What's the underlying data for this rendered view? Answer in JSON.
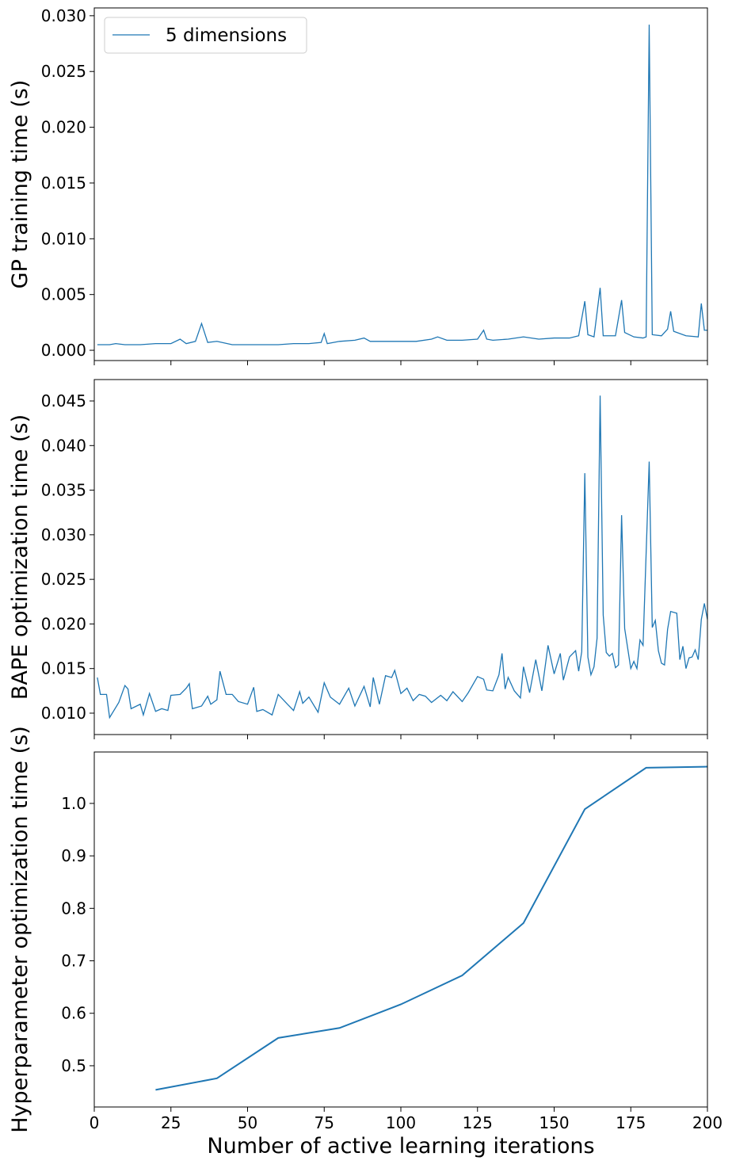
{
  "chart_data": [
    {
      "type": "line",
      "ylabel": "GP training time (s)",
      "legend": "upper left",
      "xlim": [
        0,
        200
      ],
      "xticks": [
        0,
        25,
        50,
        75,
        100,
        125,
        150,
        175,
        200
      ],
      "ylim": [
        -0.00092,
        0.0307
      ],
      "yticks": [
        {
          "value": 0,
          "label": "0.000"
        },
        {
          "value": 0.005,
          "label": "0.005"
        },
        {
          "value": 0.01,
          "label": "0.010"
        },
        {
          "value": 0.015,
          "label": "0.015"
        },
        {
          "value": 0.02,
          "label": "0.020"
        },
        {
          "value": 0.025,
          "label": "0.025"
        },
        {
          "value": 0.03,
          "label": "0.030"
        }
      ],
      "x": [
        1,
        5,
        7,
        10,
        15,
        20,
        25,
        28,
        30,
        33,
        35,
        37,
        40,
        45,
        50,
        55,
        60,
        65,
        70,
        74,
        75,
        76,
        80,
        85,
        88,
        90,
        95,
        100,
        105,
        110,
        112,
        115,
        120,
        125,
        127,
        128,
        130,
        135,
        140,
        145,
        150,
        155,
        158,
        160,
        161,
        163,
        165,
        166,
        170,
        172,
        173,
        176,
        179,
        180,
        181,
        182,
        185,
        187,
        188,
        189,
        193,
        197,
        198,
        199,
        200
      ],
      "series": [
        {
          "name": "5 dimensions",
          "color": "#1f77b4",
          "values": [
            0.0005,
            0.0005,
            0.0006,
            0.0005,
            0.0005,
            0.0006,
            0.0006,
            0.001,
            0.0006,
            0.0008,
            0.0024,
            0.0007,
            0.0008,
            0.0005,
            0.0005,
            0.0005,
            0.0005,
            0.0006,
            0.0006,
            0.0007,
            0.0015,
            0.0006,
            0.0008,
            0.0009,
            0.0011,
            0.0008,
            0.0008,
            0.0008,
            0.0008,
            0.001,
            0.0012,
            0.0009,
            0.0009,
            0.001,
            0.0018,
            0.001,
            0.0009,
            0.001,
            0.0012,
            0.001,
            0.0011,
            0.0011,
            0.0013,
            0.0044,
            0.0014,
            0.0012,
            0.0056,
            0.0013,
            0.0013,
            0.0045,
            0.0016,
            0.0012,
            0.0011,
            0.0012,
            0.0292,
            0.0014,
            0.0013,
            0.0019,
            0.0035,
            0.0017,
            0.0013,
            0.0012,
            0.0042,
            0.0018,
            0.0018
          ]
        }
      ]
    },
    {
      "type": "line",
      "ylabel": "BAPE optimization time (s)",
      "xlim": [
        0,
        200
      ],
      "xticks": [
        0,
        25,
        50,
        75,
        100,
        125,
        150,
        175,
        200
      ],
      "ylim": [
        0.0076,
        0.0474
      ],
      "yticks": [
        {
          "value": 0.01,
          "label": "0.010"
        },
        0.015,
        {
          "value": 0.02,
          "label": "0.020"
        },
        0.025,
        {
          "value": 0.03,
          "label": "0.030"
        },
        0.035,
        {
          "value": 0.04,
          "label": "0.040"
        },
        0.045
      ],
      "x": [
        1,
        2,
        4,
        5,
        8,
        10,
        11,
        12,
        15,
        16,
        18,
        20,
        22,
        24,
        25,
        28,
        30,
        31,
        32,
        35,
        37,
        38,
        40,
        41,
        43,
        45,
        47,
        50,
        52,
        53,
        55,
        58,
        60,
        63,
        65,
        67,
        68,
        70,
        73,
        75,
        77,
        80,
        83,
        85,
        88,
        90,
        91,
        93,
        95,
        97,
        98,
        100,
        102,
        104,
        106,
        108,
        110,
        113,
        115,
        117,
        120,
        122,
        125,
        127,
        128,
        130,
        132,
        133,
        134,
        135,
        137,
        139,
        140,
        142,
        144,
        146,
        148,
        150,
        152,
        153,
        155,
        157,
        158,
        159,
        160,
        161,
        162,
        163,
        164,
        165,
        166,
        167,
        168,
        169,
        170,
        171,
        172,
        173,
        175,
        176,
        177,
        178,
        179,
        181,
        182,
        183,
        184,
        185,
        186,
        187,
        188,
        190,
        191,
        192,
        193,
        194,
        195,
        196,
        197,
        198,
        199,
        200
      ],
      "series": [
        {
          "name": null,
          "color": "#1f77b4",
          "values": [
            0.014,
            0.0121,
            0.0121,
            0.0095,
            0.0112,
            0.0131,
            0.0127,
            0.0105,
            0.011,
            0.0098,
            0.0122,
            0.0102,
            0.0105,
            0.0103,
            0.012,
            0.0121,
            0.0128,
            0.0133,
            0.0105,
            0.0108,
            0.0119,
            0.011,
            0.0115,
            0.0147,
            0.0121,
            0.0121,
            0.0113,
            0.011,
            0.0129,
            0.0102,
            0.0104,
            0.0098,
            0.0121,
            0.011,
            0.0103,
            0.0124,
            0.0111,
            0.0118,
            0.0101,
            0.0134,
            0.0118,
            0.011,
            0.0128,
            0.0108,
            0.013,
            0.0107,
            0.014,
            0.011,
            0.0142,
            0.014,
            0.0148,
            0.0122,
            0.0128,
            0.0114,
            0.0121,
            0.0119,
            0.0112,
            0.012,
            0.0114,
            0.0124,
            0.0113,
            0.0123,
            0.0141,
            0.0138,
            0.0126,
            0.0125,
            0.0143,
            0.0167,
            0.0127,
            0.014,
            0.0125,
            0.0117,
            0.0152,
            0.0123,
            0.016,
            0.0125,
            0.0176,
            0.0144,
            0.0167,
            0.0137,
            0.0163,
            0.017,
            0.0147,
            0.0169,
            0.0369,
            0.0163,
            0.0143,
            0.0152,
            0.0184,
            0.0456,
            0.021,
            0.0168,
            0.0164,
            0.0167,
            0.0151,
            0.0154,
            0.0322,
            0.0195,
            0.015,
            0.0158,
            0.015,
            0.0182,
            0.0176,
            0.0382,
            0.0196,
            0.0204,
            0.017,
            0.0156,
            0.0154,
            0.0194,
            0.0214,
            0.0212,
            0.016,
            0.0175,
            0.015,
            0.0162,
            0.0163,
            0.0171,
            0.016,
            0.0205,
            0.0223,
            0.0205
          ]
        }
      ]
    },
    {
      "type": "line",
      "ylabel": "Hyperparameter optimization time (s)",
      "xlabel": "Number of active learning iterations",
      "xlim": [
        0,
        200
      ],
      "xticks": [
        0,
        25,
        50,
        75,
        100,
        125,
        150,
        175,
        200
      ],
      "ylim": [
        0.4214,
        1.098
      ],
      "yticks": [
        0.5,
        0.6,
        0.7,
        0.8,
        0.9,
        {
          "value": 1,
          "label": "1.0"
        }
      ],
      "x": [
        20,
        40,
        60,
        80,
        100,
        120,
        140,
        160,
        180,
        200
      ],
      "series": [
        {
          "name": null,
          "color": "#1f77b4",
          "values": [
            0.454,
            0.476,
            0.553,
            0.572,
            0.617,
            0.672,
            0.772,
            0.989,
            1.068,
            1.07
          ]
        }
      ]
    }
  ]
}
